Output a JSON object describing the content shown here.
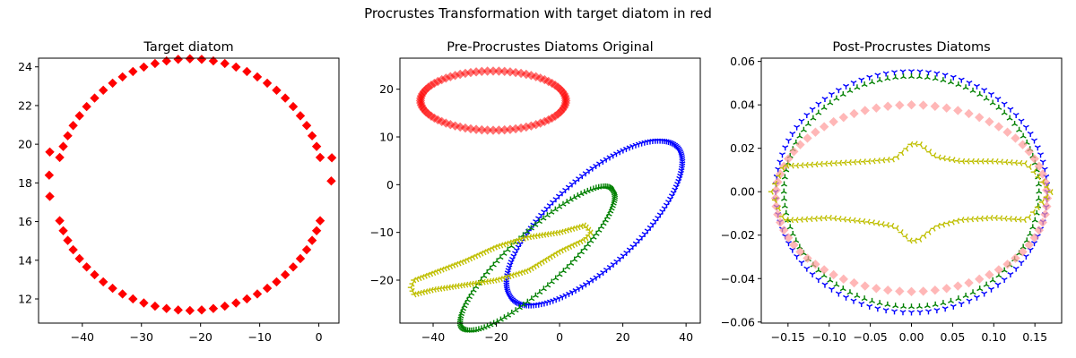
{
  "figure": {
    "suptitle": "Procrustes Transformation with target diatom in red"
  },
  "chart_data": [
    {
      "type": "scatter",
      "title": "Target diatom",
      "xlabel": "",
      "ylabel": "",
      "xlim": [
        -47.4,
        3.4
      ],
      "ylim": [
        10.75,
        24.45
      ],
      "xticks": [
        -40,
        -30,
        -20,
        -10,
        0
      ],
      "xtick_labels": [
        "−40",
        "−30",
        "−20",
        "−10",
        "0"
      ],
      "yticks": [
        12,
        14,
        16,
        18,
        20,
        22,
        24
      ],
      "ytick_labels": [
        "12",
        "14",
        "16",
        "18",
        "20",
        "22",
        "24"
      ],
      "grid": false,
      "series": [
        {
          "marker": "diamond",
          "color": "#ff0000",
          "alpha": 1.0,
          "outline": {
            "type": "ellipse",
            "points": 72,
            "cx": -21.8,
            "cy": 17.6,
            "rx": 22.8,
            "ry": 6.2,
            "ry_top_boost": 0.1,
            "y_round": 0.05,
            "gap_right_deg": [
              -12,
              12
            ],
            "gap_left_deg": [
              166,
              194
            ]
          },
          "extra_points": [
            [
              -45.6,
              18.4
            ],
            [
              -45.5,
              19.6
            ],
            [
              -45.5,
              17.3
            ],
            [
              2.1,
              18.1
            ],
            [
              2.2,
              19.3
            ]
          ]
        }
      ]
    },
    {
      "type": "scatter",
      "title": "Pre-Procrustes Diatoms Original",
      "xlabel": "",
      "ylabel": "",
      "xlim": [
        -50.5,
        44.5
      ],
      "ylim": [
        -29.0,
        26.5
      ],
      "xticks": [
        -40,
        -20,
        0,
        20,
        40
      ],
      "xtick_labels": [
        "−40",
        "−20",
        "0",
        "20",
        "40"
      ],
      "yticks": [
        -20,
        -10,
        0,
        10,
        20
      ],
      "ytick_labels": [
        "−20",
        "−10",
        "0",
        "10",
        "20"
      ],
      "grid": false,
      "series": [
        {
          "marker": "diamond",
          "color": "#ff0000",
          "alpha": 0.55,
          "outline": {
            "type": "ellipse",
            "points": 80,
            "cx": -21.0,
            "cy": 17.6,
            "rx": 23.0,
            "ry": 6.2,
            "ry_top_boost": 0.0,
            "y_round": 0.0
          }
        },
        {
          "marker": "tri_down",
          "color": "#0000ff",
          "alpha": 1.0,
          "outline": {
            "type": "rotated_ellipse",
            "points": 160,
            "cx": 11.0,
            "cy": -8.0,
            "rx": 31.0,
            "ry": 10.5,
            "angle_deg": 28
          }
        },
        {
          "marker": "tri_up",
          "color": "#008000",
          "alpha": 1.0,
          "outline": {
            "type": "rotated_ellipse",
            "points": 120,
            "cx": -7.0,
            "cy": -15.5,
            "rx": 28.0,
            "ry": 6.5,
            "angle_deg": 30
          }
        },
        {
          "marker": "tri_left",
          "color": "#bfbf00",
          "alpha": 1.0,
          "outline": {
            "type": "polyline",
            "points": 130,
            "vertices": [
              [
                -46,
                -20
              ],
              [
                -40,
                -18.5
              ],
              [
                -30,
                -16
              ],
              [
                -20,
                -13
              ],
              [
                -10,
                -11
              ],
              [
                0,
                -10
              ],
              [
                8,
                -8.5
              ],
              [
                10,
                -10
              ],
              [
                8,
                -11.5
              ],
              [
                0,
                -14
              ],
              [
                -10,
                -18
              ],
              [
                -20,
                -20
              ],
              [
                -30,
                -21
              ],
              [
                -40,
                -22
              ],
              [
                -46,
                -23
              ],
              [
                -47,
                -21.5
              ],
              [
                -46,
                -20
              ]
            ]
          }
        }
      ]
    },
    {
      "type": "scatter",
      "title": "Post-Procrustes Diatoms",
      "xlabel": "",
      "ylabel": "",
      "xlim": [
        -0.1825,
        0.1825
      ],
      "ylim": [
        -0.0605,
        0.0615
      ],
      "xticks": [
        -0.15,
        -0.1,
        -0.05,
        0.0,
        0.05,
        0.1,
        0.15
      ],
      "xtick_labels": [
        "−0.15",
        "−0.10",
        "−0.05",
        "0.00",
        "0.05",
        "0.10",
        "0.15"
      ],
      "yticks": [
        -0.06,
        -0.04,
        -0.02,
        0.0,
        0.02,
        0.04,
        0.06
      ],
      "ytick_labels": [
        "−0.06",
        "−0.04",
        "−0.02",
        "0.00",
        "0.02",
        "0.04",
        "0.06"
      ],
      "grid": false,
      "series": [
        {
          "marker": "tri_down",
          "color": "#0000ff",
          "alpha": 1.0,
          "outline": {
            "type": "ellipse",
            "points": 100,
            "cx": 0.0,
            "cy": 0.0,
            "rx": 0.165,
            "ry": 0.0555,
            "ry_top_boost": 0.0,
            "y_round": 0.0
          }
        },
        {
          "marker": "tri_up",
          "color": "#008000",
          "alpha": 1.0,
          "outline": {
            "type": "ellipse",
            "points": 100,
            "cx": 0.0,
            "cy": 0.0,
            "rx": 0.155,
            "ry": 0.053,
            "ry_top_boost": 0.0,
            "y_round": 0.0
          }
        },
        {
          "marker": "diamond",
          "color": "#ff9999",
          "alpha": 0.7,
          "outline": {
            "type": "ellipse",
            "points": 72,
            "cx": 0.0,
            "cy": -0.003,
            "rx": 0.165,
            "ry": 0.043,
            "ry_top_boost": 0.0,
            "y_round": 0.0
          }
        },
        {
          "marker": "tri_left",
          "color": "#bfbf00",
          "alpha": 1.0,
          "outline": {
            "type": "polyline",
            "points": 120,
            "vertices": [
              [
                -0.17,
                0.0
              ],
              [
                -0.155,
                0.012
              ],
              [
                -0.14,
                0.012
              ],
              [
                -0.1,
                0.013
              ],
              [
                -0.05,
                0.014
              ],
              [
                -0.02,
                0.015
              ],
              [
                0.0,
                0.022
              ],
              [
                0.01,
                0.022
              ],
              [
                0.03,
                0.016
              ],
              [
                0.06,
                0.014
              ],
              [
                0.1,
                0.014
              ],
              [
                0.14,
                0.013
              ],
              [
                0.17,
                0.0
              ],
              [
                0.14,
                -0.013
              ],
              [
                0.1,
                -0.012
              ],
              [
                0.06,
                -0.013
              ],
              [
                0.03,
                -0.016
              ],
              [
                0.01,
                -0.022
              ],
              [
                0.0,
                -0.023
              ],
              [
                -0.02,
                -0.016
              ],
              [
                -0.05,
                -0.014
              ],
              [
                -0.1,
                -0.012
              ],
              [
                -0.14,
                -0.013
              ],
              [
                -0.155,
                -0.013
              ],
              [
                -0.17,
                0.0
              ]
            ]
          }
        }
      ]
    }
  ]
}
